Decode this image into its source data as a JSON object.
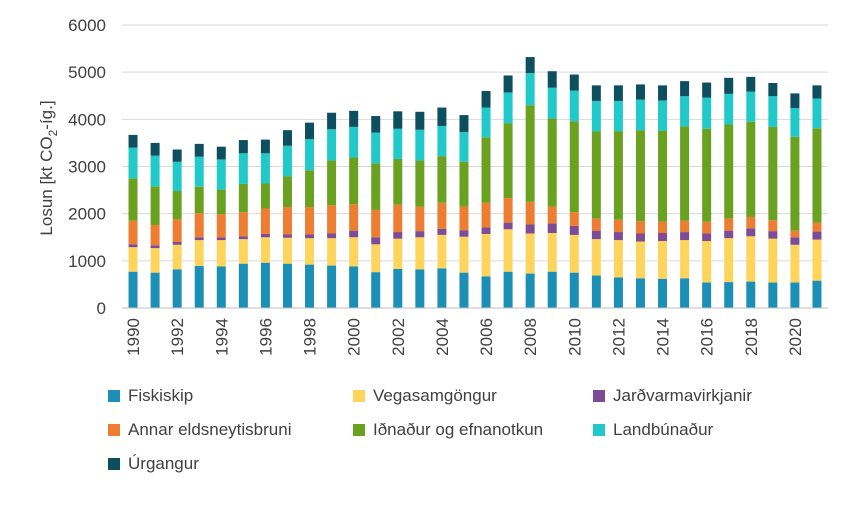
{
  "chart_data": {
    "type": "bar",
    "stacked": true,
    "ylabel": "Losun [kt CO₂-íg.]",
    "ylabel_prefix": "Losun [kt CO",
    "ylabel_sub": "2",
    "ylabel_suffix": "-íg.]",
    "ylim": [
      0,
      6000
    ],
    "yticks": [
      0,
      1000,
      2000,
      3000,
      4000,
      5000,
      6000
    ],
    "grid": true,
    "legend_position": "bottom",
    "categories": [
      1990,
      1991,
      1992,
      1993,
      1994,
      1995,
      1996,
      1997,
      1998,
      1999,
      2000,
      2001,
      2002,
      2003,
      2004,
      2005,
      2006,
      2007,
      2008,
      2009,
      2010,
      2011,
      2012,
      2013,
      2014,
      2015,
      2016,
      2017,
      2018,
      2019,
      2020,
      2021
    ],
    "xtick_labels": [
      "1990",
      "1992",
      "1994",
      "1996",
      "1998",
      "2000",
      "2002",
      "2004",
      "2006",
      "2008",
      "2010",
      "2012",
      "2014",
      "2016",
      "2018",
      "2020"
    ],
    "series": [
      {
        "name": "Fiskiskip",
        "color": "#1b8fb5",
        "values": [
          770,
          750,
          820,
          890,
          880,
          940,
          960,
          940,
          920,
          900,
          880,
          760,
          830,
          820,
          840,
          750,
          670,
          770,
          730,
          770,
          750,
          690,
          650,
          630,
          620,
          630,
          540,
          550,
          560,
          540,
          540,
          580
        ]
      },
      {
        "name": "Vegasamgöngur",
        "color": "#fdd55c",
        "values": [
          520,
          520,
          520,
          550,
          560,
          520,
          540,
          550,
          560,
          580,
          620,
          590,
          640,
          680,
          710,
          760,
          900,
          900,
          850,
          820,
          800,
          770,
          790,
          780,
          800,
          810,
          880,
          930,
          960,
          930,
          800,
          870
        ]
      },
      {
        "name": "Jarðvarmavirkjanir",
        "color": "#7c4d96",
        "values": [
          60,
          60,
          60,
          60,
          60,
          60,
          70,
          70,
          80,
          100,
          140,
          150,
          140,
          130,
          130,
          140,
          140,
          140,
          190,
          200,
          190,
          180,
          170,
          170,
          170,
          170,
          160,
          160,
          170,
          160,
          160,
          170
        ]
      },
      {
        "name": "Annar eldsneytisbruni",
        "color": "#ed7d31",
        "values": [
          500,
          430,
          480,
          510,
          490,
          510,
          540,
          580,
          580,
          600,
          560,
          580,
          580,
          520,
          550,
          500,
          520,
          520,
          480,
          360,
          290,
          260,
          260,
          260,
          240,
          240,
          250,
          260,
          240,
          230,
          140,
          190
        ]
      },
      {
        "name": "Iðnaður og efnanotkun",
        "color": "#6aa121",
        "values": [
          900,
          820,
          600,
          560,
          520,
          600,
          530,
          650,
          780,
          950,
          990,
          990,
          970,
          980,
          990,
          950,
          1390,
          1590,
          2050,
          1870,
          1930,
          1850,
          1880,
          1930,
          1930,
          2000,
          1970,
          1990,
          2020,
          1980,
          1990,
          2000
        ]
      },
      {
        "name": "Landbúnaður",
        "color": "#22c9c9",
        "values": [
          650,
          650,
          620,
          640,
          640,
          650,
          640,
          650,
          660,
          660,
          650,
          650,
          640,
          650,
          640,
          630,
          630,
          650,
          680,
          650,
          650,
          640,
          640,
          650,
          640,
          640,
          660,
          650,
          640,
          650,
          610,
          630
        ]
      },
      {
        "name": "Úrgangur",
        "color": "#0d4f5f",
        "values": [
          270,
          270,
          260,
          270,
          270,
          280,
          290,
          330,
          350,
          350,
          340,
          350,
          370,
          380,
          390,
          360,
          350,
          360,
          340,
          350,
          340,
          330,
          330,
          320,
          320,
          320,
          320,
          340,
          310,
          280,
          310,
          280
        ]
      }
    ]
  }
}
